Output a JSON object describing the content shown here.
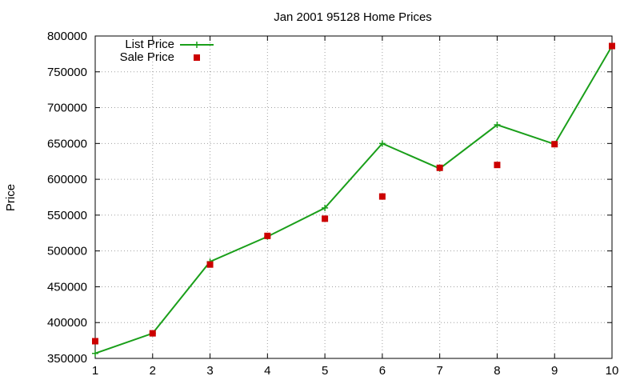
{
  "chart_data": {
    "type": "line",
    "title": "Jan 2001 95128 Home Prices",
    "xlabel": "",
    "ylabel": "Price",
    "x": [
      1,
      2,
      3,
      4,
      5,
      6,
      7,
      8,
      9,
      10
    ],
    "xlim": [
      1,
      10
    ],
    "ylim": [
      350000,
      800000
    ],
    "xticks": [
      "1",
      "2",
      "3",
      "4",
      "5",
      "6",
      "7",
      "8",
      "9",
      "10"
    ],
    "yticks": [
      "350000",
      "400000",
      "450000",
      "500000",
      "550000",
      "600000",
      "650000",
      "700000",
      "750000",
      "800000"
    ],
    "grid": true,
    "legend_position": "top-left",
    "series": [
      {
        "name": "List Price",
        "style": "line-with-plus-markers",
        "color": "#1a9f1a",
        "values": [
          357000,
          385000,
          485000,
          520000,
          560000,
          650000,
          615000,
          676000,
          649000,
          786000
        ]
      },
      {
        "name": "Sale Price",
        "style": "square-points",
        "color": "#cc0000",
        "values": [
          374000,
          385000,
          481000,
          521000,
          545000,
          576000,
          616000,
          620000,
          649000,
          786000
        ]
      }
    ]
  }
}
